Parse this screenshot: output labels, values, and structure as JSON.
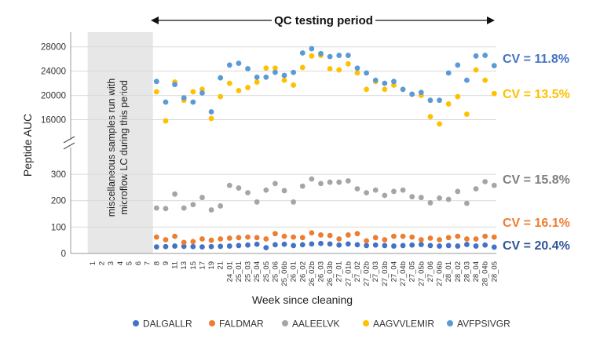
{
  "chart_data": {
    "type": "scatter",
    "title": "QC testing period",
    "xlabel": "Week since cleaning",
    "ylabel": "Peptide AUC",
    "annotation": "miscellaneous samples run with microflow LC during this period",
    "broken_axis": {
      "upper": {
        "ylim": [
          14000,
          29000
        ],
        "ticks": [
          16000,
          20000,
          24000,
          28000
        ]
      },
      "lower": {
        "ylim": [
          0,
          330
        ],
        "ticks": [
          0,
          100,
          200,
          300
        ]
      }
    },
    "categories": [
      "1",
      "2",
      "3",
      "4",
      "5",
      "6",
      "7",
      "8",
      "9",
      "11",
      "13",
      "15",
      "17",
      "19",
      "21",
      "24_01",
      "25_01",
      "25_03",
      "25_04",
      "25_05",
      "25_06",
      "25_06b",
      "26_01",
      "26_02",
      "26_02b",
      "26_03",
      "26_03b",
      "27_01",
      "27_01b",
      "27_02",
      "27_02b",
      "27_03",
      "27_03b",
      "27_04",
      "27_04b",
      "27_05",
      "27_05b",
      "27_06",
      "27_06b",
      "28_01",
      "28_02",
      "28_03",
      "28_04",
      "28_04b",
      "28_05"
    ],
    "series": [
      {
        "name": "DALGALLR",
        "color": "#4472C4",
        "cv": "CV = 20.4%",
        "cv_color": "#2F5597",
        "axis": "lower",
        "values": [
          null,
          null,
          null,
          null,
          null,
          null,
          null,
          25,
          26,
          28,
          27,
          26,
          25,
          26,
          27,
          28,
          30,
          32,
          35,
          22,
          33,
          35,
          30,
          33,
          36,
          38,
          36,
          32,
          36,
          33,
          30,
          32,
          30,
          28,
          30,
          32,
          34,
          30,
          28,
          30,
          28,
          34,
          28,
          32,
          24
        ]
      },
      {
        "name": "FALDMAR",
        "color": "#ED7D31",
        "cv": "CV = 16.1%",
        "cv_color": "#ED7D31",
        "axis": "lower",
        "values": [
          null,
          null,
          null,
          null,
          null,
          null,
          null,
          62,
          52,
          65,
          42,
          45,
          55,
          50,
          55,
          58,
          60,
          62,
          60,
          55,
          75,
          65,
          62,
          60,
          78,
          70,
          68,
          55,
          70,
          75,
          48,
          60,
          52,
          65,
          65,
          62,
          52,
          58,
          52,
          60,
          65,
          55,
          55,
          65,
          62
        ]
      },
      {
        "name": "AALEELVK",
        "color": "#A5A5A5",
        "cv": "CV = 15.8%",
        "cv_color": "#7F7F7F",
        "axis": "lower",
        "values": [
          null,
          null,
          null,
          null,
          null,
          null,
          null,
          172,
          170,
          225,
          172,
          185,
          212,
          165,
          180,
          258,
          248,
          230,
          195,
          240,
          265,
          238,
          195,
          255,
          282,
          265,
          270,
          270,
          275,
          245,
          230,
          240,
          220,
          235,
          240,
          215,
          212,
          192,
          210,
          205,
          235,
          190,
          245,
          272,
          258
        ]
      },
      {
        "name": "AAGVVLEMIR",
        "color": "#FFC000",
        "cv": "CV = 13.5%",
        "cv_color": "#FFC000",
        "axis": "upper",
        "values": [
          null,
          null,
          null,
          null,
          null,
          null,
          null,
          20600,
          15800,
          22200,
          19200,
          20600,
          21000,
          16200,
          19800,
          22000,
          20800,
          21300,
          22200,
          24500,
          24500,
          22500,
          21700,
          24600,
          26500,
          26600,
          24400,
          24200,
          25200,
          23700,
          21000,
          22300,
          21000,
          21700,
          21000,
          20200,
          20000,
          16500,
          15300,
          18600,
          19800,
          16900,
          24200,
          22500,
          20300
        ]
      },
      {
        "name": "AVFPSIVGR",
        "color": "#5B9BD5",
        "cv": "CV = 11.8%",
        "cv_color": "#4472C4",
        "axis": "upper",
        "values": [
          null,
          null,
          null,
          null,
          null,
          null,
          null,
          22300,
          18900,
          21800,
          19600,
          18900,
          20400,
          17300,
          22900,
          25000,
          25300,
          24400,
          23000,
          23000,
          23800,
          23300,
          23800,
          27000,
          27700,
          26900,
          26400,
          26600,
          26600,
          24500,
          23700,
          22500,
          22000,
          22300,
          21000,
          20200,
          20500,
          19200,
          19200,
          23700,
          25000,
          22500,
          26500,
          26600,
          24900
        ]
      }
    ]
  }
}
